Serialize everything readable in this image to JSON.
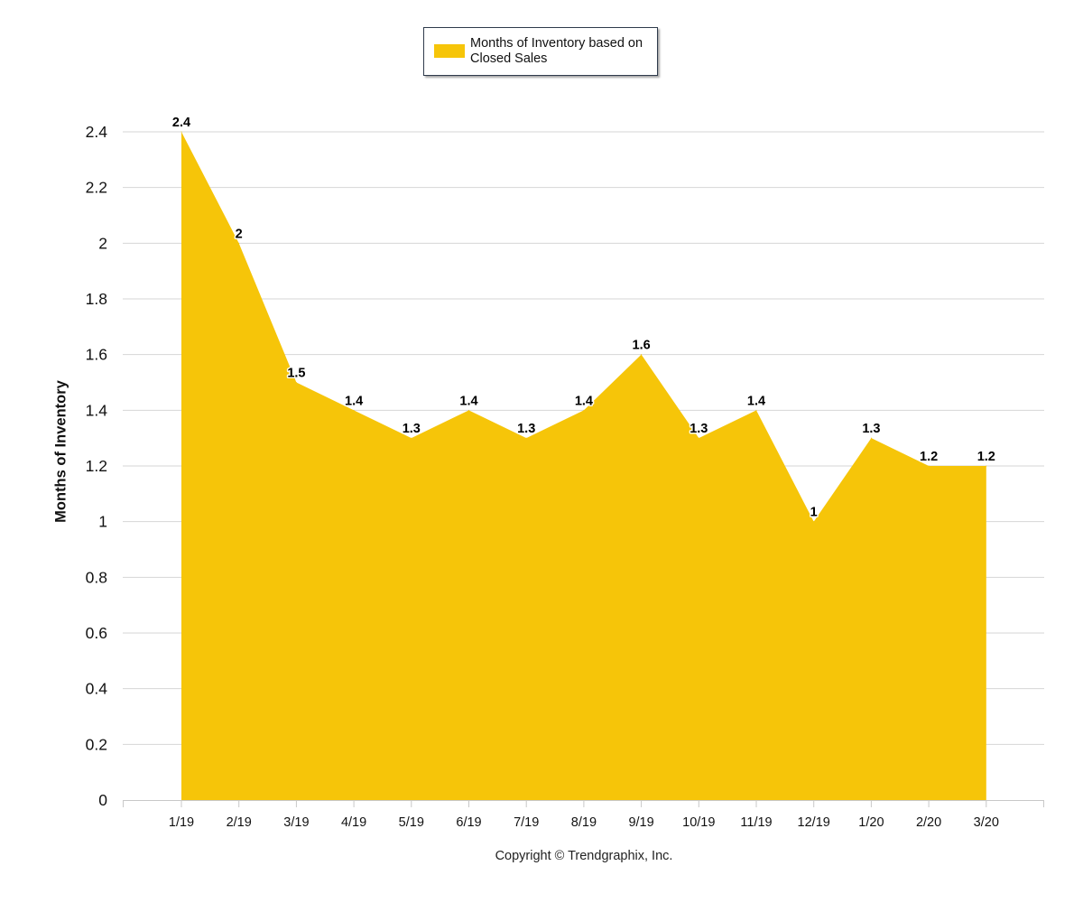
{
  "colors": {
    "area": "#F6C509",
    "grid": "#d6d6d6",
    "axis": "#c8c8c8",
    "text": "#111111"
  },
  "legend": {
    "label": "Months of Inventory based on Closed Sales"
  },
  "footer": {
    "copyright": "Copyright © Trendgraphix, Inc."
  },
  "chart_data": {
    "type": "area",
    "title": "",
    "xlabel": "",
    "ylabel": "Months of Inventory",
    "categories": [
      "1/19",
      "2/19",
      "3/19",
      "4/19",
      "5/19",
      "6/19",
      "7/19",
      "8/19",
      "9/19",
      "10/19",
      "11/19",
      "12/19",
      "1/20",
      "2/20",
      "3/20"
    ],
    "series": [
      {
        "name": "Months of Inventory based on Closed Sales",
        "values": [
          2.4,
          2,
          1.5,
          1.4,
          1.3,
          1.4,
          1.3,
          1.4,
          1.6,
          1.3,
          1.4,
          1,
          1.3,
          1.2,
          1.2
        ],
        "labels": [
          "2.4",
          "2",
          "1.5",
          "1.4",
          "1.3",
          "1.4",
          "1.3",
          "1.4",
          "1.6",
          "1.3",
          "1.4",
          "1",
          "1.3",
          "1.2",
          "1.2"
        ]
      }
    ],
    "ylim": [
      0,
      2.4
    ],
    "yticks": [
      0,
      0.2,
      0.4,
      0.6,
      0.8,
      1,
      1.2,
      1.4,
      1.6,
      1.8,
      2,
      2.2,
      2.4
    ],
    "ytick_labels": [
      "0",
      "0.2",
      "0.4",
      "0.6",
      "0.8",
      "1",
      "1.2",
      "1.4",
      "1.6",
      "1.8",
      "2",
      "2.2",
      "2.4"
    ],
    "grid": true,
    "legend_position": "top-center"
  }
}
